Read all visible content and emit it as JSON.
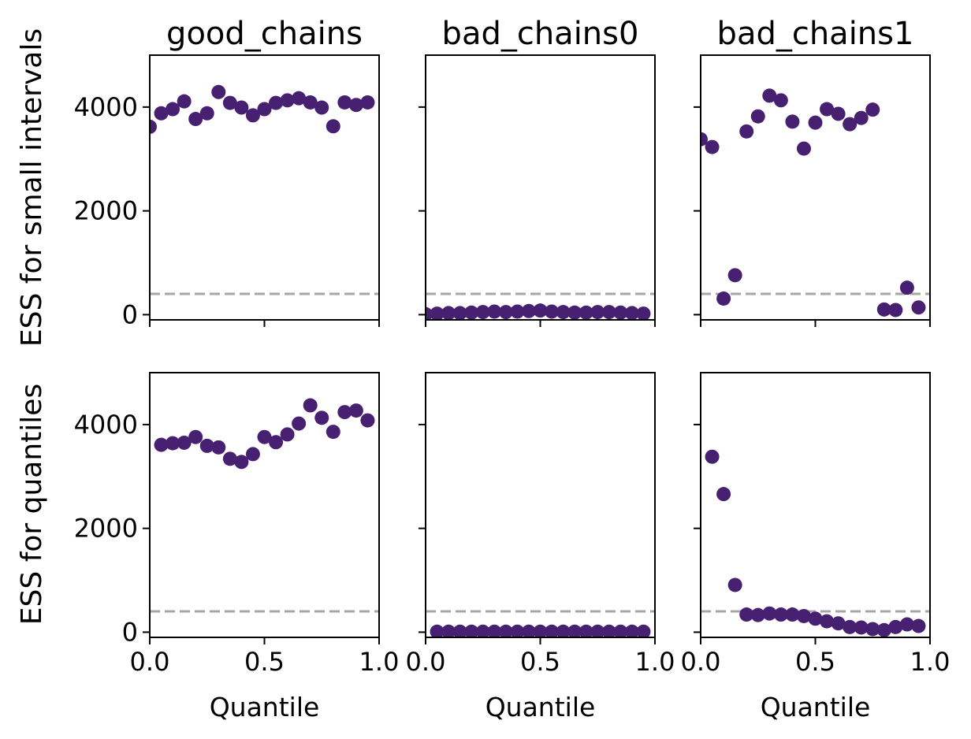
{
  "chart_data": {
    "type": "scatter",
    "layout": "2x3 grid",
    "shared_x": true,
    "shared_y": true,
    "xlim": [
      0,
      1
    ],
    "ylim": [
      -100,
      5000
    ],
    "xticks": [
      0.0,
      0.5,
      1.0
    ],
    "xtick_labels": [
      "0.0",
      "0.5",
      "1.0"
    ],
    "yticks": [
      0,
      2000,
      4000
    ],
    "ytick_labels": [
      "0",
      "2000",
      "4000"
    ],
    "xlabel": "Quantile",
    "row_labels": [
      "ESS for small intervals",
      "ESS for quantiles"
    ],
    "column_titles": [
      "good_chains",
      "bad_chains0",
      "bad_chains1"
    ],
    "reference_line": {
      "y": 400,
      "style": "dashed",
      "color": "#a6a6a6"
    },
    "marker_color": "#482071",
    "grid": false,
    "panels": [
      {
        "row": 0,
        "col": 0,
        "x": [
          0.0,
          0.05,
          0.1,
          0.15,
          0.2,
          0.25,
          0.3,
          0.35,
          0.4,
          0.45,
          0.5,
          0.55,
          0.6,
          0.65,
          0.7,
          0.75,
          0.8,
          0.85,
          0.9,
          0.95
        ],
        "y": [
          3620,
          3880,
          3960,
          4110,
          3770,
          3880,
          4290,
          4080,
          3990,
          3840,
          3960,
          4080,
          4130,
          4170,
          4090,
          3990,
          3630,
          4090,
          4040,
          4090
        ]
      },
      {
        "row": 0,
        "col": 1,
        "x": [
          0.0,
          0.05,
          0.1,
          0.15,
          0.2,
          0.25,
          0.3,
          0.35,
          0.4,
          0.45,
          0.5,
          0.55,
          0.6,
          0.65,
          0.7,
          0.75,
          0.8,
          0.85,
          0.9,
          0.95
        ],
        "y": [
          10,
          20,
          30,
          30,
          40,
          50,
          60,
          50,
          60,
          70,
          80,
          60,
          50,
          40,
          40,
          50,
          50,
          40,
          30,
          20
        ]
      },
      {
        "row": 0,
        "col": 2,
        "x": [
          0.0,
          0.05,
          0.1,
          0.15,
          0.2,
          0.25,
          0.3,
          0.35,
          0.4,
          0.45,
          0.5,
          0.55,
          0.6,
          0.65,
          0.7,
          0.75,
          0.8,
          0.85,
          0.9,
          0.95
        ],
        "y": [
          3380,
          3230,
          310,
          760,
          3530,
          3820,
          4220,
          4130,
          3720,
          3200,
          3700,
          3960,
          3870,
          3670,
          3790,
          3950,
          100,
          90,
          520,
          140
        ]
      },
      {
        "row": 1,
        "col": 0,
        "x": [
          0.05,
          0.1,
          0.15,
          0.2,
          0.25,
          0.3,
          0.35,
          0.4,
          0.45,
          0.5,
          0.55,
          0.6,
          0.65,
          0.7,
          0.75,
          0.8,
          0.85,
          0.9,
          0.95
        ],
        "y": [
          3610,
          3640,
          3650,
          3760,
          3590,
          3560,
          3340,
          3280,
          3430,
          3760,
          3660,
          3810,
          4020,
          4370,
          4130,
          3860,
          4240,
          4270,
          4080
        ]
      },
      {
        "row": 1,
        "col": 1,
        "x": [
          0.05,
          0.1,
          0.15,
          0.2,
          0.25,
          0.3,
          0.35,
          0.4,
          0.45,
          0.5,
          0.55,
          0.6,
          0.65,
          0.7,
          0.75,
          0.8,
          0.85,
          0.9,
          0.95
        ],
        "y": [
          10,
          10,
          10,
          10,
          10,
          10,
          10,
          10,
          10,
          10,
          10,
          10,
          10,
          10,
          10,
          10,
          10,
          10,
          10
        ]
      },
      {
        "row": 1,
        "col": 2,
        "x": [
          0.05,
          0.1,
          0.15,
          0.2,
          0.25,
          0.3,
          0.35,
          0.4,
          0.45,
          0.5,
          0.55,
          0.6,
          0.65,
          0.7,
          0.75,
          0.8,
          0.85,
          0.9,
          0.95
        ],
        "y": [
          3380,
          2660,
          910,
          340,
          330,
          360,
          340,
          340,
          310,
          260,
          210,
          170,
          100,
          90,
          60,
          40,
          100,
          150,
          120
        ]
      }
    ]
  }
}
